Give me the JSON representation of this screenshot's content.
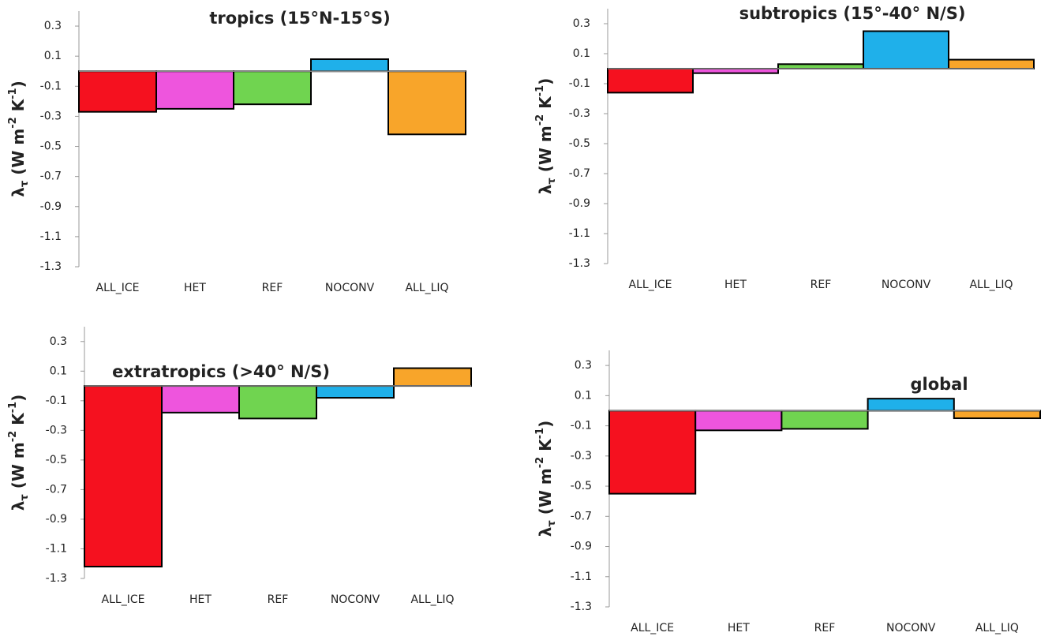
{
  "chart_data": [
    {
      "type": "bar",
      "title": "tropics (15°N-15°S)",
      "ylabel": [
        "λ",
        "τ",
        " (W m",
        "-2",
        " K",
        "-1",
        ")"
      ],
      "ylabel_style": [
        "normal",
        "sub",
        "normal",
        "sup",
        "normal",
        "sup",
        "normal"
      ],
      "categories": [
        "ALL_ICE",
        "HET",
        "REF",
        "NOCONV",
        "ALL_LIQ"
      ],
      "values": [
        -0.27,
        -0.25,
        -0.22,
        0.08,
        -0.42
      ],
      "colors": [
        "#f5111f",
        "#ee55dd",
        "#70d450",
        "#1fb0ea",
        "#f8a52a"
      ],
      "ylim": [
        -1.3,
        0.4
      ],
      "yticks": [
        0.3,
        0.1,
        -0.1,
        -0.3,
        -0.5,
        -0.7,
        -0.9,
        -1.1,
        -1.3
      ]
    },
    {
      "type": "bar",
      "title": "subtropics (15°-40° N/S)",
      "ylabel": [
        "λ",
        "τ",
        " (W m",
        "-2",
        " K",
        "-1",
        ")"
      ],
      "ylabel_style": [
        "normal",
        "sub",
        "normal",
        "sup",
        "normal",
        "sup",
        "normal"
      ],
      "categories": [
        "ALL_ICE",
        "HET",
        "REF",
        "NOCONV",
        "ALL_LIQ"
      ],
      "values": [
        -0.16,
        -0.03,
        0.03,
        0.25,
        0.06
      ],
      "colors": [
        "#f5111f",
        "#ee55dd",
        "#70d450",
        "#1fb0ea",
        "#f8a52a"
      ],
      "ylim": [
        -1.3,
        0.4
      ],
      "yticks": [
        0.3,
        0.1,
        -0.1,
        -0.3,
        -0.5,
        -0.7,
        -0.9,
        -1.1,
        -1.3
      ]
    },
    {
      "type": "bar",
      "title": "extratropics (>40° N/S)",
      "ylabel": [
        "λ",
        "τ",
        " (W m",
        "-2",
        " K",
        "-1",
        ")"
      ],
      "ylabel_style": [
        "normal",
        "sub",
        "normal",
        "sup",
        "normal",
        "sup",
        "normal"
      ],
      "categories": [
        "ALL_ICE",
        "HET",
        "REF",
        "NOCONV",
        "ALL_LIQ"
      ],
      "values": [
        -1.22,
        -0.18,
        -0.22,
        -0.08,
        0.12
      ],
      "colors": [
        "#f5111f",
        "#ee55dd",
        "#70d450",
        "#1fb0ea",
        "#f8a52a"
      ],
      "ylim": [
        -1.3,
        0.4
      ],
      "yticks": [
        0.3,
        0.1,
        -0.1,
        -0.3,
        -0.5,
        -0.7,
        -0.9,
        -1.1,
        -1.3
      ]
    },
    {
      "type": "bar",
      "title": "global",
      "ylabel": [
        "λ",
        "τ",
        " (W m",
        "-2",
        " K",
        "-1",
        ")"
      ],
      "ylabel_style": [
        "normal",
        "sub",
        "normal",
        "sup",
        "normal",
        "sup",
        "normal"
      ],
      "categories": [
        "ALL_ICE",
        "HET",
        "REF",
        "NOCONV",
        "ALL_LIQ"
      ],
      "values": [
        -0.55,
        -0.13,
        -0.12,
        0.08,
        -0.05
      ],
      "colors": [
        "#f5111f",
        "#ee55dd",
        "#70d450",
        "#1fb0ea",
        "#f8a52a"
      ],
      "ylim": [
        -1.3,
        0.4
      ],
      "yticks": [
        0.3,
        0.1,
        -0.1,
        -0.3,
        -0.5,
        -0.7,
        -0.9,
        -1.1,
        -1.3
      ]
    }
  ]
}
